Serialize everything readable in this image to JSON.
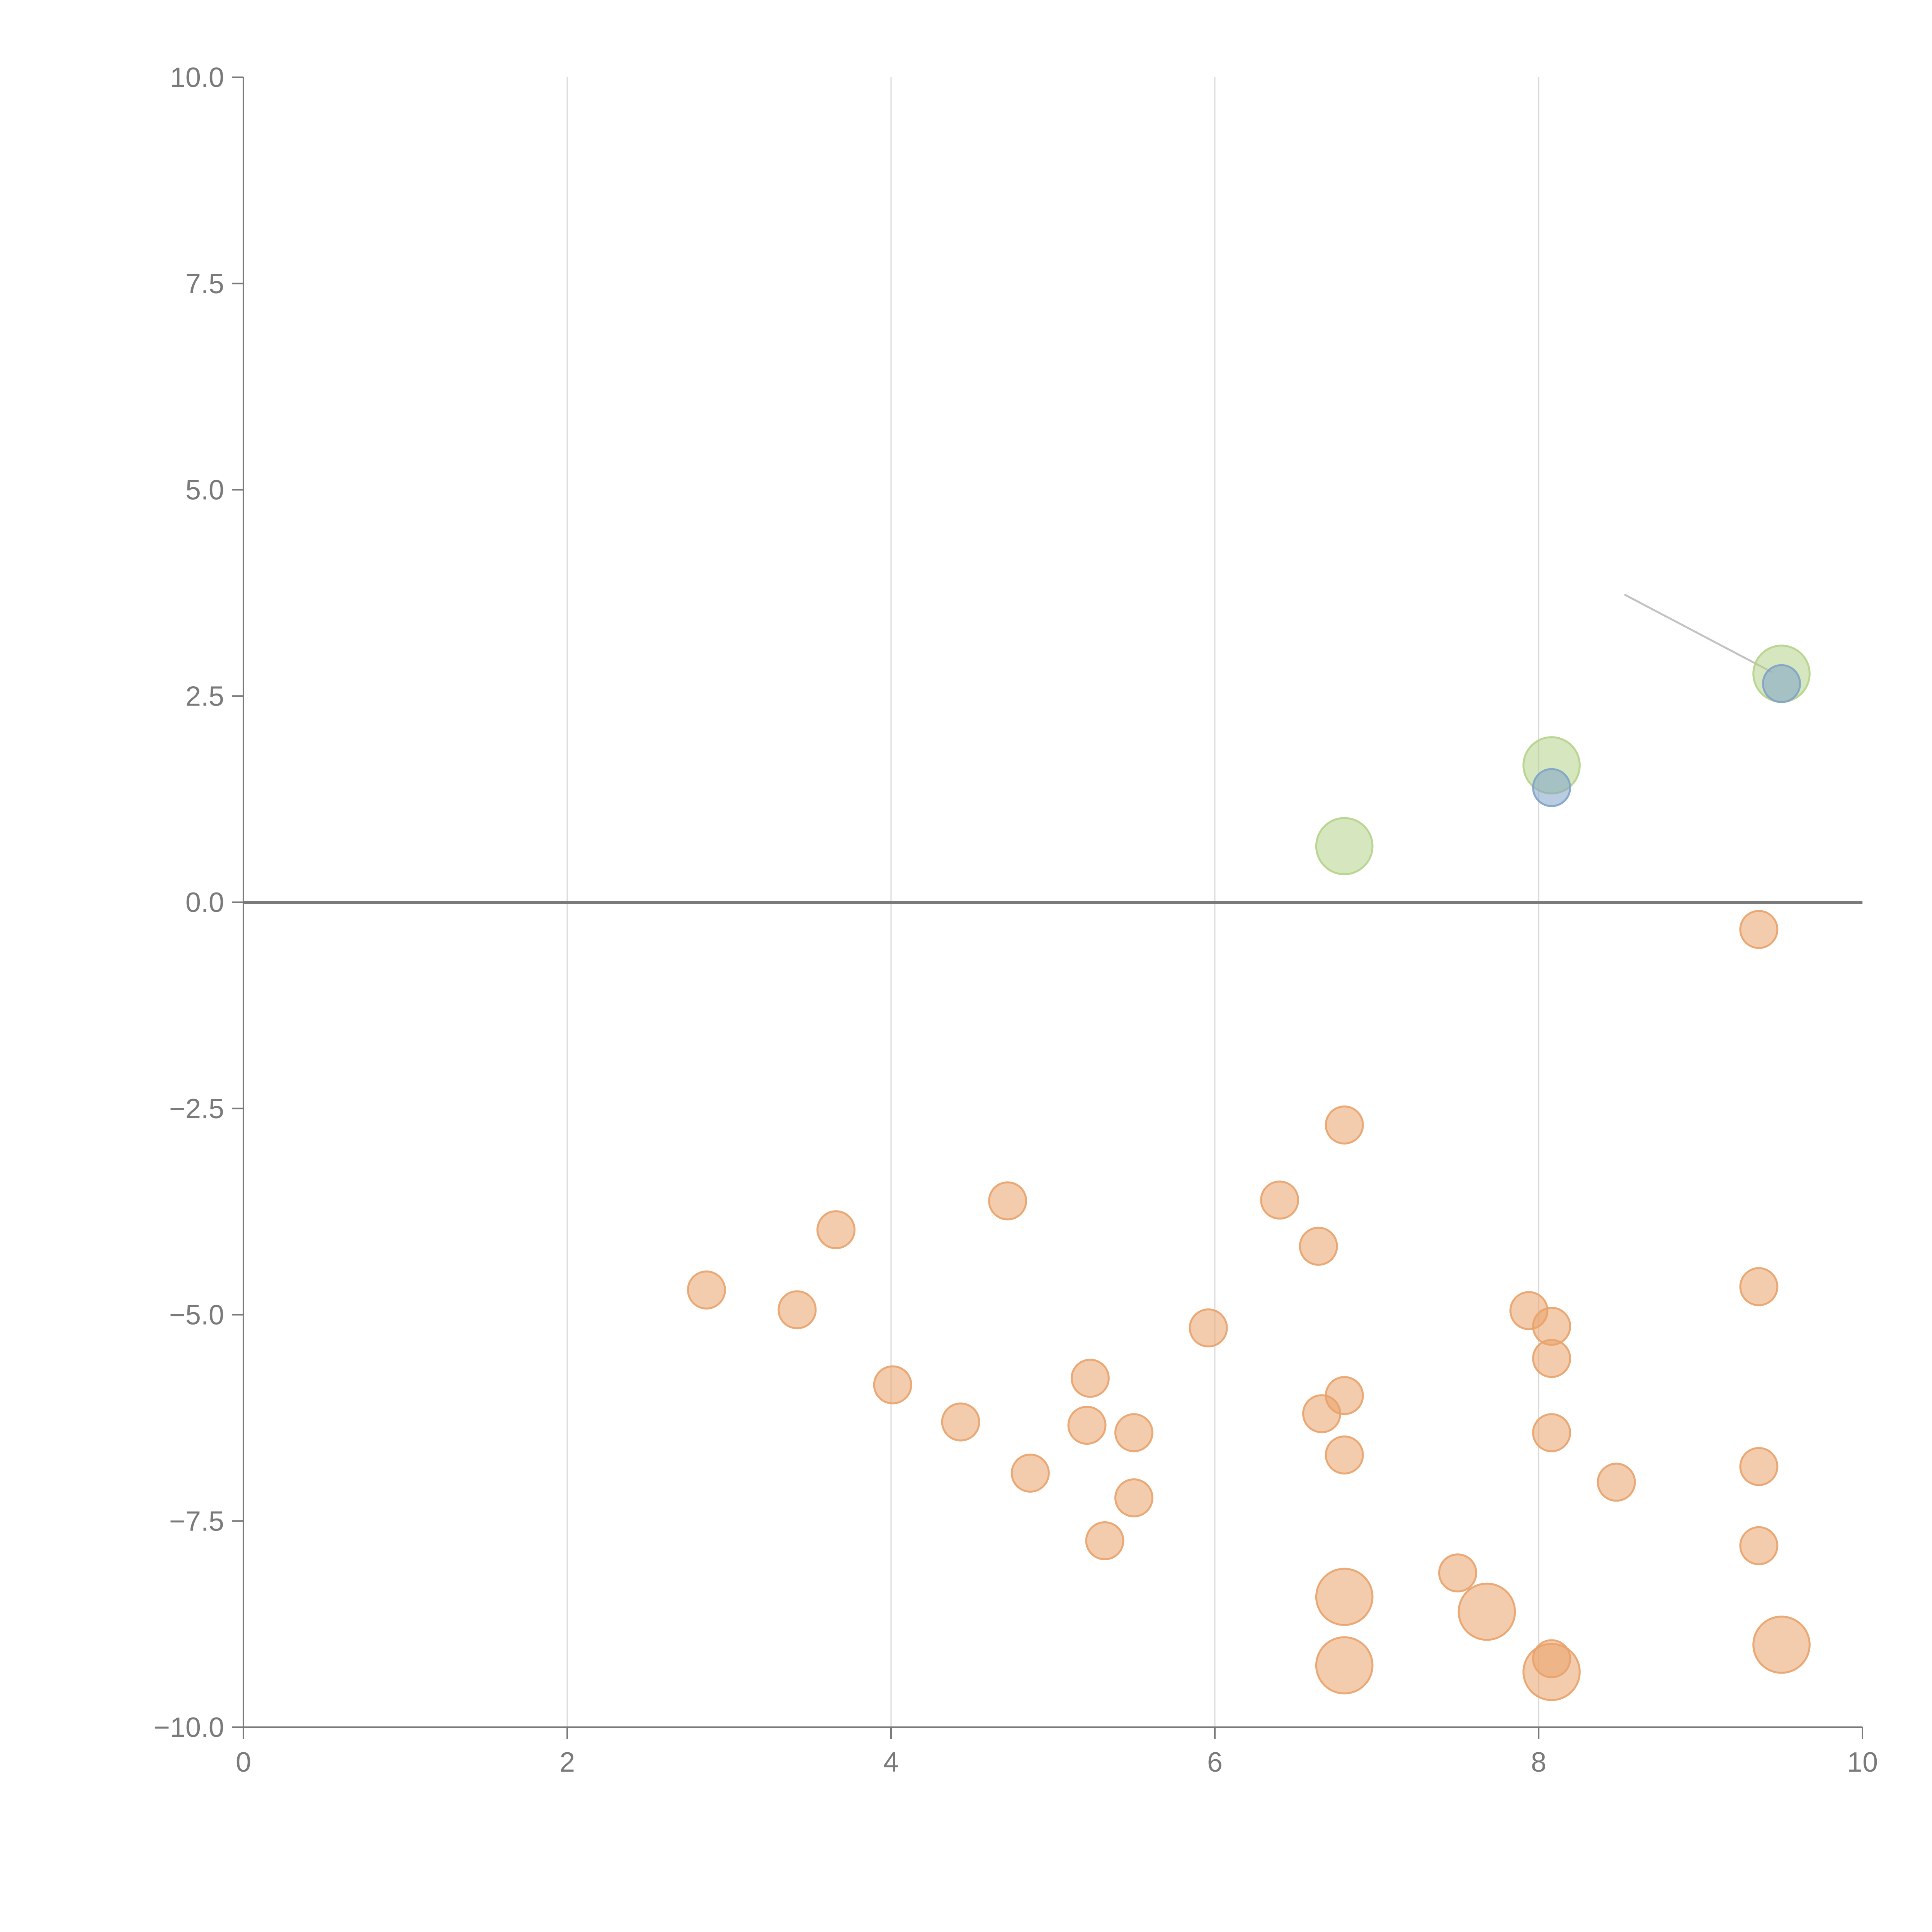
{
  "chart_data": {
    "type": "scatter",
    "title": "",
    "xlabel": "",
    "ylabel": "",
    "xlim": [
      0,
      10
    ],
    "ylim": [
      -10,
      10
    ],
    "grid": {
      "x": true,
      "y": false
    },
    "x_ticks": [
      "0",
      "2",
      "4",
      "6",
      "8",
      "10"
    ],
    "y_ticks": [
      "−10.0",
      "−7.5",
      "−5.0",
      "−2.5",
      "0.0",
      "2.5",
      "5.0",
      "7.5",
      "10.0"
    ],
    "x_tick_values": [
      0,
      2,
      4,
      6,
      8,
      10
    ],
    "y_tick_values": [
      -10,
      -7.5,
      -5,
      -2.5,
      0,
      2.5,
      5,
      7.5,
      10
    ],
    "colors": {
      "orange": "#e9a26a",
      "green": "#b5d38a",
      "blue": "#7fa3c8"
    },
    "series": [
      {
        "name": "orange",
        "color": "#e9a26a",
        "points": [
          {
            "x": 9.36,
            "y": -0.33,
            "size": 1
          },
          {
            "x": 6.8,
            "y": -2.7,
            "size": 1
          },
          {
            "x": 4.72,
            "y": -3.62,
            "size": 1
          },
          {
            "x": 3.66,
            "y": -3.97,
            "size": 1
          },
          {
            "x": 6.4,
            "y": -3.61,
            "size": 1
          },
          {
            "x": 6.64,
            "y": -4.17,
            "size": 1
          },
          {
            "x": 2.86,
            "y": -4.7,
            "size": 1
          },
          {
            "x": 3.42,
            "y": -4.94,
            "size": 1
          },
          {
            "x": 9.36,
            "y": -4.66,
            "size": 1
          },
          {
            "x": 7.94,
            "y": -4.95,
            "size": 1
          },
          {
            "x": 8.08,
            "y": -5.14,
            "size": 1
          },
          {
            "x": 5.96,
            "y": -5.16,
            "size": 1
          },
          {
            "x": 8.08,
            "y": -5.53,
            "size": 1
          },
          {
            "x": 4.01,
            "y": -5.85,
            "size": 1
          },
          {
            "x": 5.23,
            "y": -5.77,
            "size": 1
          },
          {
            "x": 6.8,
            "y": -5.98,
            "size": 1
          },
          {
            "x": 6.66,
            "y": -6.2,
            "size": 1
          },
          {
            "x": 4.43,
            "y": -6.3,
            "size": 1
          },
          {
            "x": 5.21,
            "y": -6.34,
            "size": 1
          },
          {
            "x": 5.5,
            "y": -6.43,
            "size": 1
          },
          {
            "x": 8.08,
            "y": -6.43,
            "size": 1
          },
          {
            "x": 6.8,
            "y": -6.7,
            "size": 1
          },
          {
            "x": 4.86,
            "y": -6.92,
            "size": 1
          },
          {
            "x": 9.36,
            "y": -6.84,
            "size": 1
          },
          {
            "x": 8.48,
            "y": -7.03,
            "size": 1
          },
          {
            "x": 5.5,
            "y": -7.22,
            "size": 1
          },
          {
            "x": 5.32,
            "y": -7.74,
            "size": 1
          },
          {
            "x": 9.36,
            "y": -7.8,
            "size": 1
          },
          {
            "x": 7.5,
            "y": -8.13,
            "size": 1
          },
          {
            "x": 6.8,
            "y": -8.42,
            "size": 2.3
          },
          {
            "x": 7.68,
            "y": -8.6,
            "size": 2.3
          },
          {
            "x": 9.5,
            "y": -9.0,
            "size": 2.3
          },
          {
            "x": 6.8,
            "y": -9.25,
            "size": 2.3
          },
          {
            "x": 8.08,
            "y": -9.33,
            "size": 2.3
          },
          {
            "x": 8.08,
            "y": -9.17,
            "size": 1
          }
        ]
      },
      {
        "name": "green",
        "color": "#b5d38a",
        "points": [
          {
            "x": 6.8,
            "y": 0.68,
            "size": 2.3
          },
          {
            "x": 8.08,
            "y": 1.66,
            "size": 2.3
          },
          {
            "x": 9.5,
            "y": 2.77,
            "size": 2.3
          }
        ]
      },
      {
        "name": "blue",
        "color": "#7fa3c8",
        "points": [
          {
            "x": 8.08,
            "y": 1.39,
            "size": 1
          },
          {
            "x": 9.5,
            "y": 2.65,
            "size": 1
          }
        ]
      }
    ],
    "annotation_connectors": [
      {
        "from": [
          8.53,
          3.73
        ],
        "to": [
          9.44,
          2.79
        ]
      }
    ]
  }
}
